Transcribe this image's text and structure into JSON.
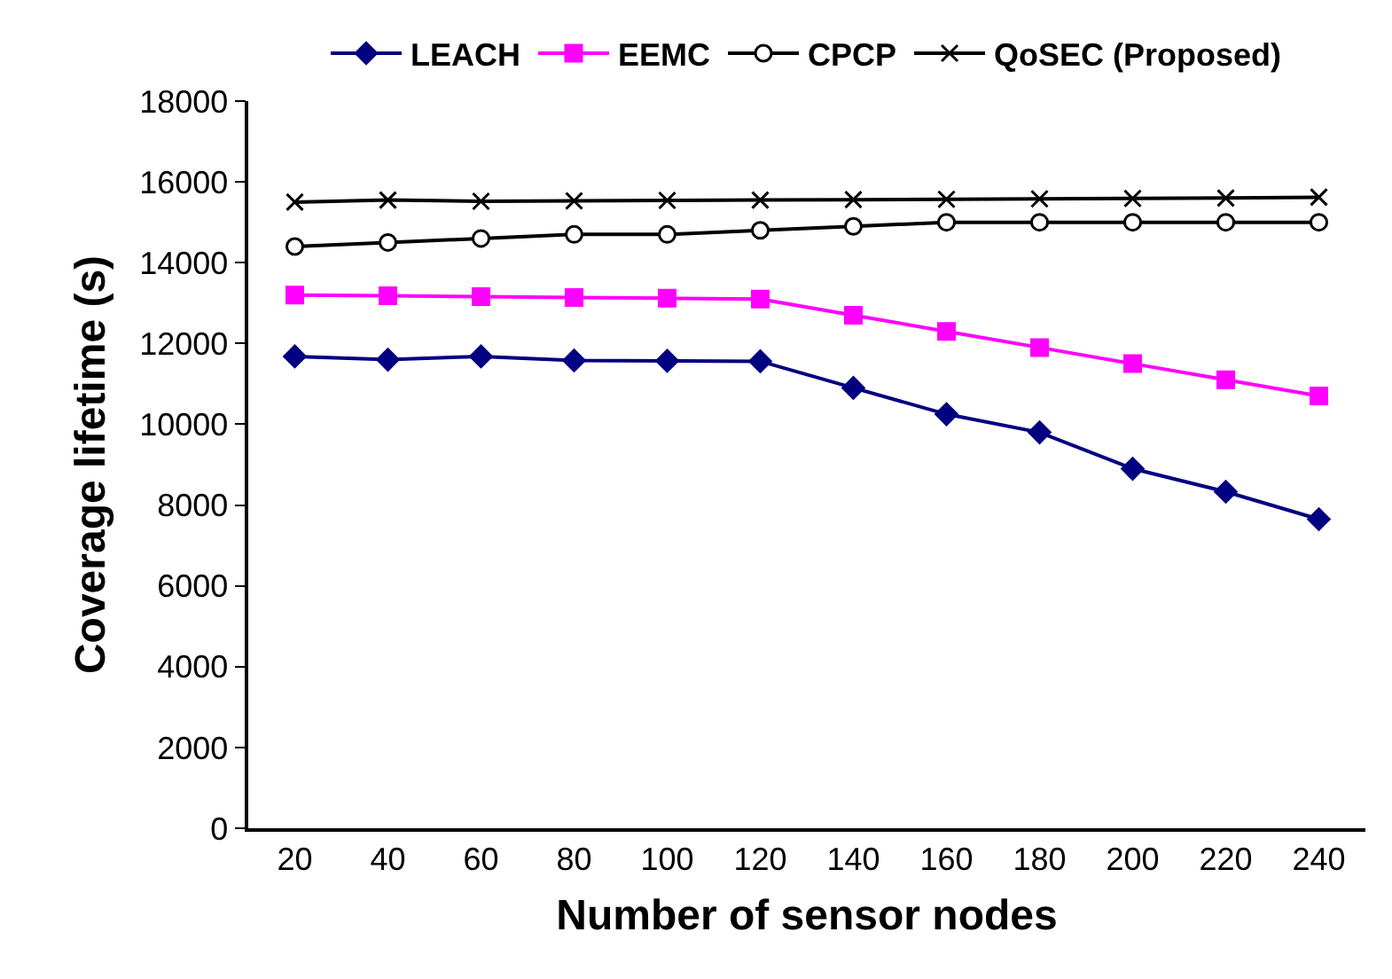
{
  "chart_data": {
    "type": "line",
    "xlabel": "Number of sensor nodes",
    "ylabel": "Coverage lifetime (s)",
    "categories": [
      "20",
      "40",
      "60",
      "80",
      "100",
      "120",
      "140",
      "160",
      "180",
      "200",
      "220",
      "240"
    ],
    "ylim": [
      0,
      18000
    ],
    "yticks": [
      0,
      2000,
      4000,
      6000,
      8000,
      10000,
      12000,
      14000,
      16000,
      18000
    ],
    "grid": false,
    "legend": "top",
    "series": [
      {
        "name": "LEACH",
        "color": "#000080",
        "marker": "diamond",
        "values": [
          11680,
          11600,
          11680,
          11580,
          11570,
          11560,
          10900,
          10250,
          9800,
          8900,
          8330,
          7650
        ]
      },
      {
        "name": "EEMC",
        "color": "#ff00ff",
        "marker": "square",
        "values": [
          13200,
          13180,
          13160,
          13140,
          13120,
          13100,
          12700,
          12300,
          11900,
          11500,
          11100,
          10700
        ]
      },
      {
        "name": "CPCP",
        "color": "#000000",
        "marker": "circle",
        "values": [
          14400,
          14500,
          14600,
          14700,
          14700,
          14800,
          14900,
          15000,
          15000,
          15000,
          15000,
          15000
        ]
      },
      {
        "name": "QoSEC (Proposed)",
        "color": "#000000",
        "marker": "cross",
        "values": [
          15500,
          15550,
          15520,
          15530,
          15540,
          15550,
          15560,
          15570,
          15580,
          15590,
          15600,
          15620
        ]
      }
    ]
  }
}
